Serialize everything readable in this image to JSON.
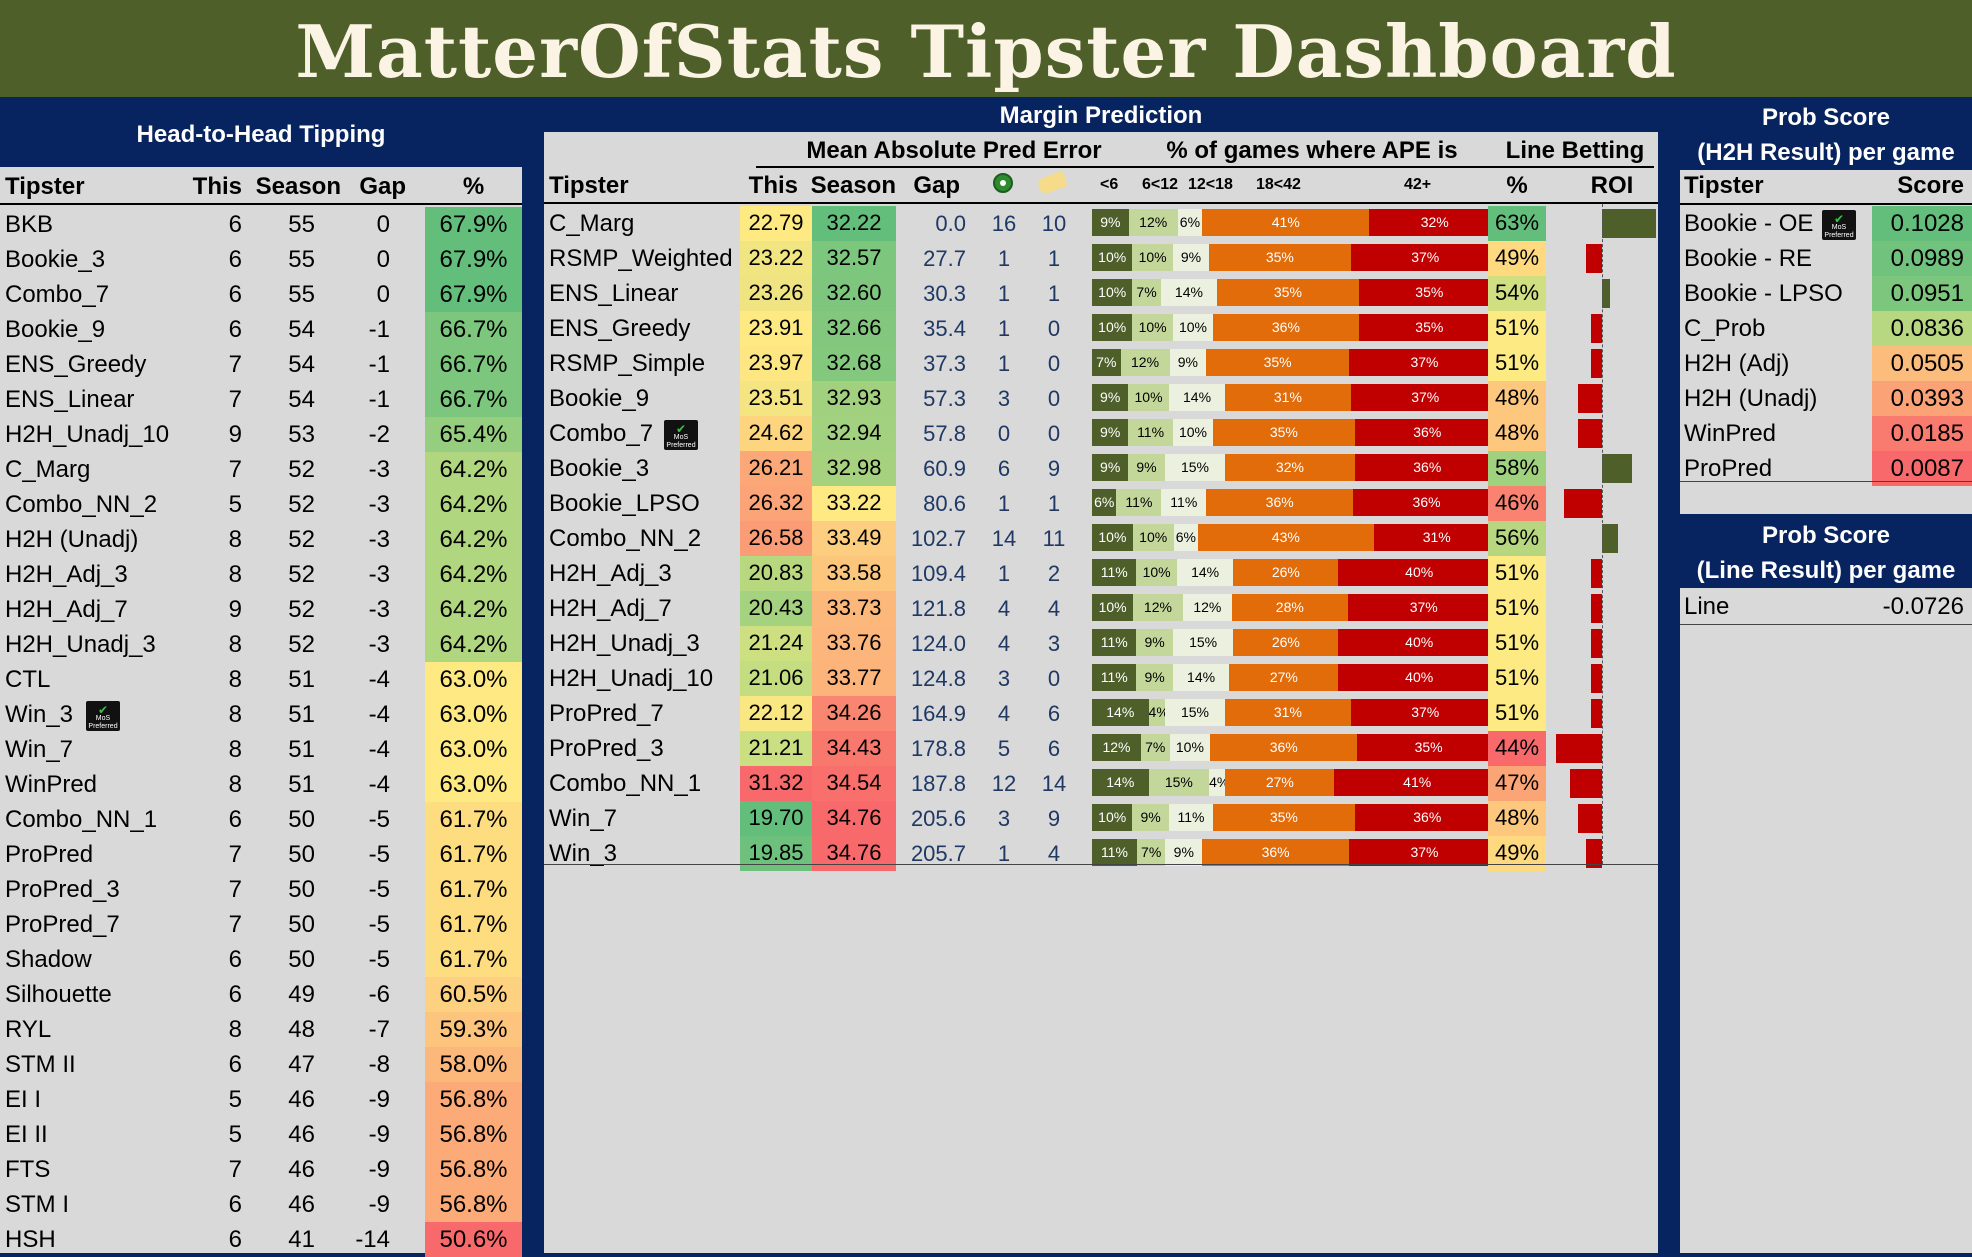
{
  "title": "MatterOfStats Tipster Dashboard",
  "h2h": {
    "title": "Head-to-Head Tipping",
    "cols": [
      "Tipster",
      "This",
      "Season",
      "Gap",
      "%"
    ],
    "rows": [
      {
        "name": "BKB",
        "this": "6",
        "season": "55",
        "gap": "0",
        "pct": "67.9%",
        "color": "#63be7b"
      },
      {
        "name": "Bookie_3",
        "this": "6",
        "season": "55",
        "gap": "0",
        "pct": "67.9%",
        "color": "#63be7b"
      },
      {
        "name": "Combo_7",
        "this": "6",
        "season": "55",
        "gap": "0",
        "pct": "67.9%",
        "color": "#63be7b"
      },
      {
        "name": "Bookie_9",
        "this": "6",
        "season": "54",
        "gap": "-1",
        "pct": "66.7%",
        "color": "#7cc67d"
      },
      {
        "name": "ENS_Greedy",
        "this": "7",
        "season": "54",
        "gap": "-1",
        "pct": "66.7%",
        "color": "#7cc67d"
      },
      {
        "name": "ENS_Linear",
        "this": "7",
        "season": "54",
        "gap": "-1",
        "pct": "66.7%",
        "color": "#7cc67d"
      },
      {
        "name": "H2H_Unadj_10",
        "this": "9",
        "season": "53",
        "gap": "-2",
        "pct": "65.4%",
        "color": "#96ce7f"
      },
      {
        "name": "C_Marg",
        "this": "7",
        "season": "52",
        "gap": "-3",
        "pct": "64.2%",
        "color": "#b1d680"
      },
      {
        "name": "Combo_NN_2",
        "this": "5",
        "season": "52",
        "gap": "-3",
        "pct": "64.2%",
        "color": "#b1d680"
      },
      {
        "name": "H2H (Unadj)",
        "this": "8",
        "season": "52",
        "gap": "-3",
        "pct": "64.2%",
        "color": "#b1d680"
      },
      {
        "name": "H2H_Adj_3",
        "this": "8",
        "season": "52",
        "gap": "-3",
        "pct": "64.2%",
        "color": "#b1d680"
      },
      {
        "name": "H2H_Adj_7",
        "this": "9",
        "season": "52",
        "gap": "-3",
        "pct": "64.2%",
        "color": "#b1d680"
      },
      {
        "name": "H2H_Unadj_3",
        "this": "8",
        "season": "52",
        "gap": "-3",
        "pct": "64.2%",
        "color": "#b1d680"
      },
      {
        "name": "CTL",
        "this": "8",
        "season": "51",
        "gap": "-4",
        "pct": "63.0%",
        "color": "#fee983"
      },
      {
        "name": "Win_3",
        "this": "8",
        "season": "51",
        "gap": "-4",
        "pct": "63.0%",
        "color": "#fee983",
        "badge": true
      },
      {
        "name": "Win_7",
        "this": "8",
        "season": "51",
        "gap": "-4",
        "pct": "63.0%",
        "color": "#fee983"
      },
      {
        "name": "WinPred",
        "this": "8",
        "season": "51",
        "gap": "-4",
        "pct": "63.0%",
        "color": "#fee983"
      },
      {
        "name": "Combo_NN_1",
        "this": "6",
        "season": "50",
        "gap": "-5",
        "pct": "61.7%",
        "color": "#fedd81"
      },
      {
        "name": "ProPred",
        "this": "7",
        "season": "50",
        "gap": "-5",
        "pct": "61.7%",
        "color": "#fedd81"
      },
      {
        "name": "ProPred_3",
        "this": "7",
        "season": "50",
        "gap": "-5",
        "pct": "61.7%",
        "color": "#fedd81"
      },
      {
        "name": "ProPred_7",
        "this": "7",
        "season": "50",
        "gap": "-5",
        "pct": "61.7%",
        "color": "#fedd81"
      },
      {
        "name": "Shadow",
        "this": "6",
        "season": "50",
        "gap": "-5",
        "pct": "61.7%",
        "color": "#fedd81"
      },
      {
        "name": "Silhouette",
        "this": "6",
        "season": "49",
        "gap": "-6",
        "pct": "60.5%",
        "color": "#fdd17f"
      },
      {
        "name": "RYL",
        "this": "8",
        "season": "48",
        "gap": "-7",
        "pct": "59.3%",
        "color": "#fdc47d"
      },
      {
        "name": "STM II",
        "this": "6",
        "season": "47",
        "gap": "-8",
        "pct": "58.0%",
        "color": "#fcb77a"
      },
      {
        "name": "EI I",
        "this": "5",
        "season": "46",
        "gap": "-9",
        "pct": "56.8%",
        "color": "#fcaa78"
      },
      {
        "name": "EI II",
        "this": "5",
        "season": "46",
        "gap": "-9",
        "pct": "56.8%",
        "color": "#fcaa78"
      },
      {
        "name": "FTS",
        "this": "7",
        "season": "46",
        "gap": "-9",
        "pct": "56.8%",
        "color": "#fcaa78"
      },
      {
        "name": "STM I",
        "this": "6",
        "season": "46",
        "gap": "-9",
        "pct": "56.8%",
        "color": "#fcaa78"
      },
      {
        "name": "HSH",
        "this": "6",
        "season": "41",
        "gap": "-14",
        "pct": "50.6%",
        "color": "#f8696b"
      }
    ]
  },
  "margin": {
    "title": "Margin Prediction",
    "mape_header": "Mean Absolute Pred Error",
    "ape_header": "% of games where APE is",
    "line_header": "Line Betting",
    "cols": {
      "tipster": "Tipster",
      "this": "This",
      "season": "Season",
      "gap": "Gap",
      "pct": "%",
      "roi": "ROI"
    },
    "ape_bins": [
      "<6",
      "6<12",
      "12<18",
      "18<42",
      "42+"
    ],
    "icons": [
      "target-icon",
      "thumbs-up-icon"
    ],
    "rows": [
      {
        "name": "C_Marg",
        "this": "22.79",
        "this_color": "#fee983",
        "season": "32.22",
        "season_color": "#63be7b",
        "gap": "0.0",
        "n1": "16",
        "n2": "10",
        "ape": [
          9,
          12,
          6,
          41,
          32
        ],
        "line_pct": "63%",
        "line_color": "#63be7b",
        "roi": 0.2
      },
      {
        "name": "RSMP_Weighted",
        "this": "23.22",
        "this_color": "#f1e582",
        "season": "32.57",
        "season_color": "#7cc67d",
        "gap": "27.7",
        "n1": "1",
        "n2": "1",
        "ape": [
          10,
          10,
          9,
          35,
          37
        ],
        "line_pct": "49%",
        "line_color": "#fed980",
        "roi": -0.06
      },
      {
        "name": "ENS_Linear",
        "this": "23.26",
        "this_color": "#f0e482",
        "season": "32.60",
        "season_color": "#7ec67d",
        "gap": "30.3",
        "n1": "1",
        "n2": "1",
        "ape": [
          10,
          7,
          14,
          35,
          35
        ],
        "line_pct": "54%",
        "line_color": "#cfdf82",
        "roi": 0.03
      },
      {
        "name": "ENS_Greedy",
        "this": "23.91",
        "this_color": "#fee983",
        "season": "32.66",
        "season_color": "#82c77d",
        "gap": "35.4",
        "n1": "1",
        "n2": "0",
        "ape": [
          10,
          10,
          10,
          36,
          35
        ],
        "line_pct": "51%",
        "line_color": "#feea83",
        "roi": -0.04
      },
      {
        "name": "RSMP_Simple",
        "this": "23.97",
        "this_color": "#fee683",
        "season": "32.68",
        "season_color": "#84c87d",
        "gap": "37.3",
        "n1": "1",
        "n2": "0",
        "ape": [
          7,
          12,
          9,
          35,
          37
        ],
        "line_pct": "51%",
        "line_color": "#feea83",
        "roi": -0.04
      },
      {
        "name": "Bookie_9",
        "this": "23.51",
        "this_color": "#f4e582",
        "season": "32.93",
        "season_color": "#a1d17f",
        "gap": "57.3",
        "n1": "3",
        "n2": "0",
        "ape": [
          9,
          10,
          14,
          31,
          37
        ],
        "line_pct": "48%",
        "line_color": "#fdc77d",
        "roi": -0.09
      },
      {
        "name": "Combo_7",
        "this": "24.62",
        "this_color": "#fdd57f",
        "season": "32.94",
        "season_color": "#a2d17f",
        "gap": "57.8",
        "n1": "0",
        "n2": "0",
        "ape": [
          9,
          11,
          10,
          35,
          36
        ],
        "line_pct": "48%",
        "line_color": "#fdc77d",
        "roi": -0.09,
        "badge": true
      },
      {
        "name": "Bookie_3",
        "this": "26.21",
        "this_color": "#fba778",
        "season": "32.98",
        "season_color": "#a6d27f",
        "gap": "60.9",
        "n1": "6",
        "n2": "9",
        "ape": [
          9,
          9,
          15,
          32,
          36
        ],
        "line_pct": "58%",
        "line_color": "#9fd17f",
        "roi": 0.11
      },
      {
        "name": "Bookie_LPSO",
        "this": "26.32",
        "this_color": "#fba478",
        "season": "33.22",
        "season_color": "#fee983",
        "gap": "80.6",
        "n1": "1",
        "n2": "1",
        "ape": [
          6,
          11,
          11,
          36,
          36
        ],
        "line_pct": "46%",
        "line_color": "#f98370",
        "roi": -0.14
      },
      {
        "name": "Combo_NN_2",
        "this": "26.58",
        "this_color": "#fa9d76",
        "season": "33.49",
        "season_color": "#fdce7f",
        "gap": "102.7",
        "n1": "14",
        "n2": "11",
        "ape": [
          10,
          10,
          6,
          43,
          31
        ],
        "line_pct": "56%",
        "line_color": "#b6d780",
        "roi": 0.06
      },
      {
        "name": "H2H_Adj_3",
        "this": "20.83",
        "this_color": "#b8d880",
        "season": "33.58",
        "season_color": "#fdc67d",
        "gap": "109.4",
        "n1": "1",
        "n2": "2",
        "ape": [
          11,
          10,
          14,
          26,
          40
        ],
        "line_pct": "51%",
        "line_color": "#feea83",
        "roi": -0.04
      },
      {
        "name": "H2H_Adj_7",
        "this": "20.43",
        "this_color": "#a4d27f",
        "season": "33.73",
        "season_color": "#fcb87a",
        "gap": "121.8",
        "n1": "4",
        "n2": "4",
        "ape": [
          10,
          12,
          12,
          28,
          37
        ],
        "line_pct": "51%",
        "line_color": "#feea83",
        "roi": -0.04
      },
      {
        "name": "H2H_Unadj_3",
        "this": "21.24",
        "this_color": "#cce082",
        "season": "33.76",
        "season_color": "#fcb57a",
        "gap": "124.0",
        "n1": "4",
        "n2": "3",
        "ape": [
          11,
          9,
          15,
          26,
          40
        ],
        "line_pct": "51%",
        "line_color": "#feea83",
        "roi": -0.04
      },
      {
        "name": "H2H_Unadj_10",
        "this": "21.06",
        "this_color": "#c4dd81",
        "season": "33.77",
        "season_color": "#fcb47a",
        "gap": "124.8",
        "n1": "3",
        "n2": "0",
        "ape": [
          11,
          9,
          14,
          27,
          40
        ],
        "line_pct": "51%",
        "line_color": "#feea83",
        "roi": -0.04
      },
      {
        "name": "ProPred_7",
        "this": "22.12",
        "this_color": "#f8e783",
        "season": "34.26",
        "season_color": "#f98670",
        "gap": "164.9",
        "n1": "4",
        "n2": "6",
        "ape": [
          14,
          4,
          15,
          31,
          37
        ],
        "line_pct": "51%",
        "line_color": "#feea83",
        "roi": -0.04
      },
      {
        "name": "ProPred_3",
        "this": "21.21",
        "this_color": "#cadf82",
        "season": "34.43",
        "season_color": "#f9786d",
        "gap": "178.8",
        "n1": "5",
        "n2": "6",
        "ape": [
          12,
          7,
          10,
          36,
          35
        ],
        "line_pct": "44%",
        "line_color": "#f8696b",
        "roi": -0.17
      },
      {
        "name": "Combo_NN_1",
        "this": "31.32",
        "this_color": "#f8696b",
        "season": "34.54",
        "season_color": "#f86f6c",
        "gap": "187.8",
        "n1": "12",
        "n2": "14",
        "ape": [
          14,
          15,
          4,
          27,
          41
        ],
        "line_pct": "47%",
        "line_color": "#fba577",
        "roi": -0.12
      },
      {
        "name": "Win_7",
        "this": "19.70",
        "this_color": "#63be7b",
        "season": "34.76",
        "season_color": "#f8696b",
        "gap": "205.6",
        "n1": "3",
        "n2": "9",
        "ape": [
          10,
          9,
          11,
          35,
          36
        ],
        "line_pct": "48%",
        "line_color": "#fdc77d",
        "roi": -0.09
      },
      {
        "name": "Win_3",
        "this": "19.85",
        "this_color": "#6ec17c",
        "season": "34.76",
        "season_color": "#f8696b",
        "gap": "205.7",
        "n1": "1",
        "n2": "4",
        "ape": [
          11,
          7,
          9,
          36,
          37
        ],
        "line_pct": "49%",
        "line_color": "#fed980",
        "roi": -0.06
      }
    ]
  },
  "prob": {
    "title_line1": "Prob Score",
    "title_line2": "(H2H Result) per game",
    "cols": [
      "Tipster",
      "Score"
    ],
    "rows": [
      {
        "name": "Bookie - OE",
        "score": "0.1028",
        "color": "#63be7b",
        "badge": true
      },
      {
        "name": "Bookie - RE",
        "score": "0.0989",
        "color": "#70c27c"
      },
      {
        "name": "Bookie - LPSO",
        "score": "0.0951",
        "color": "#7cc67d"
      },
      {
        "name": "C_Prob",
        "score": "0.0836",
        "color": "#b7d880"
      },
      {
        "name": "H2H (Adj)",
        "score": "0.0505",
        "color": "#fcbc7b"
      },
      {
        "name": "H2H (Unadj)",
        "score": "0.0393",
        "color": "#fba276"
      },
      {
        "name": "WinPred",
        "score": "0.0185",
        "color": "#f97a6e"
      },
      {
        "name": "ProPred",
        "score": "0.0087",
        "color": "#f8696b"
      }
    ],
    "line_title1": "Prob Score",
    "line_title2": "(Line Result) per game",
    "line_row": {
      "name": "Line",
      "score": "-0.0726"
    }
  },
  "badge_text": [
    "MoS",
    "Preferred"
  ],
  "colors": {
    "banner": "#4e5f2a",
    "navy": "#082460",
    "panel": "#d9d9d9",
    "text_blue": "#1f3864",
    "ape": [
      "#4e5f2a",
      "#c4d79b",
      "#ebf1de",
      "#e26b0a",
      "#c00000"
    ],
    "roi_pos": "#4e5f2a",
    "roi_neg": "#c00000"
  }
}
